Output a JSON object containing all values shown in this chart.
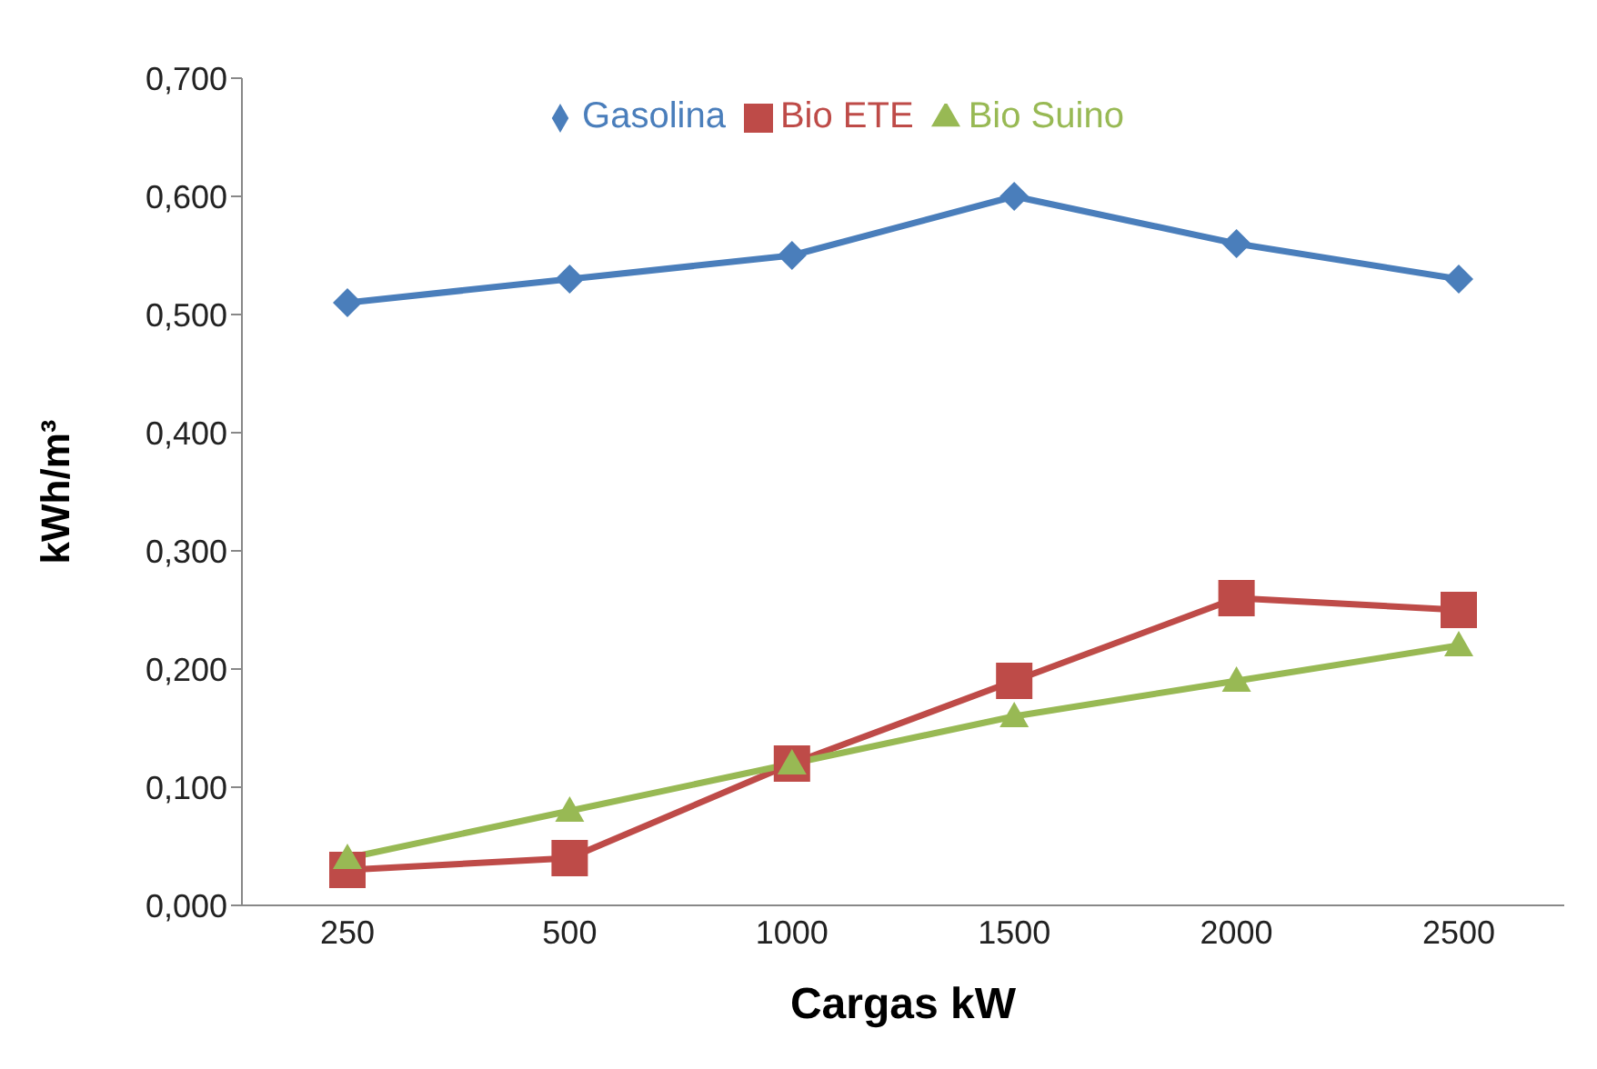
{
  "chart_data": {
    "type": "line",
    "xlabel": "Cargas kW",
    "ylabel": "kWh/m³",
    "categories": [
      "250",
      "500",
      "1000",
      "1500",
      "2000",
      "2500"
    ],
    "series": [
      {
        "name": "Gasolina",
        "color": "#4a7ebb",
        "marker": "diamond",
        "values": [
          0.51,
          0.53,
          0.55,
          0.6,
          0.56,
          0.53
        ]
      },
      {
        "name": "Bio ETE",
        "color": "#be4b48",
        "marker": "square",
        "values": [
          0.03,
          0.04,
          0.12,
          0.19,
          0.26,
          0.25
        ]
      },
      {
        "name": "Bio Suino",
        "color": "#98b954",
        "marker": "triangle",
        "values": [
          0.04,
          0.08,
          0.12,
          0.16,
          0.19,
          0.22
        ]
      }
    ],
    "ylim": [
      0,
      0.7
    ],
    "yticks": [
      {
        "value": 0,
        "label": "0,000"
      },
      {
        "value": 0.1,
        "label": "0,100"
      },
      {
        "value": 0.2,
        "label": "0,200"
      },
      {
        "value": 0.3,
        "label": "0,300"
      },
      {
        "value": 0.4,
        "label": "0,400"
      },
      {
        "value": 0.5,
        "label": "0,500"
      },
      {
        "value": 0.6,
        "label": "0,600"
      },
      {
        "value": 0.7,
        "label": "0,700"
      }
    ],
    "grid": false,
    "legend": "top"
  }
}
